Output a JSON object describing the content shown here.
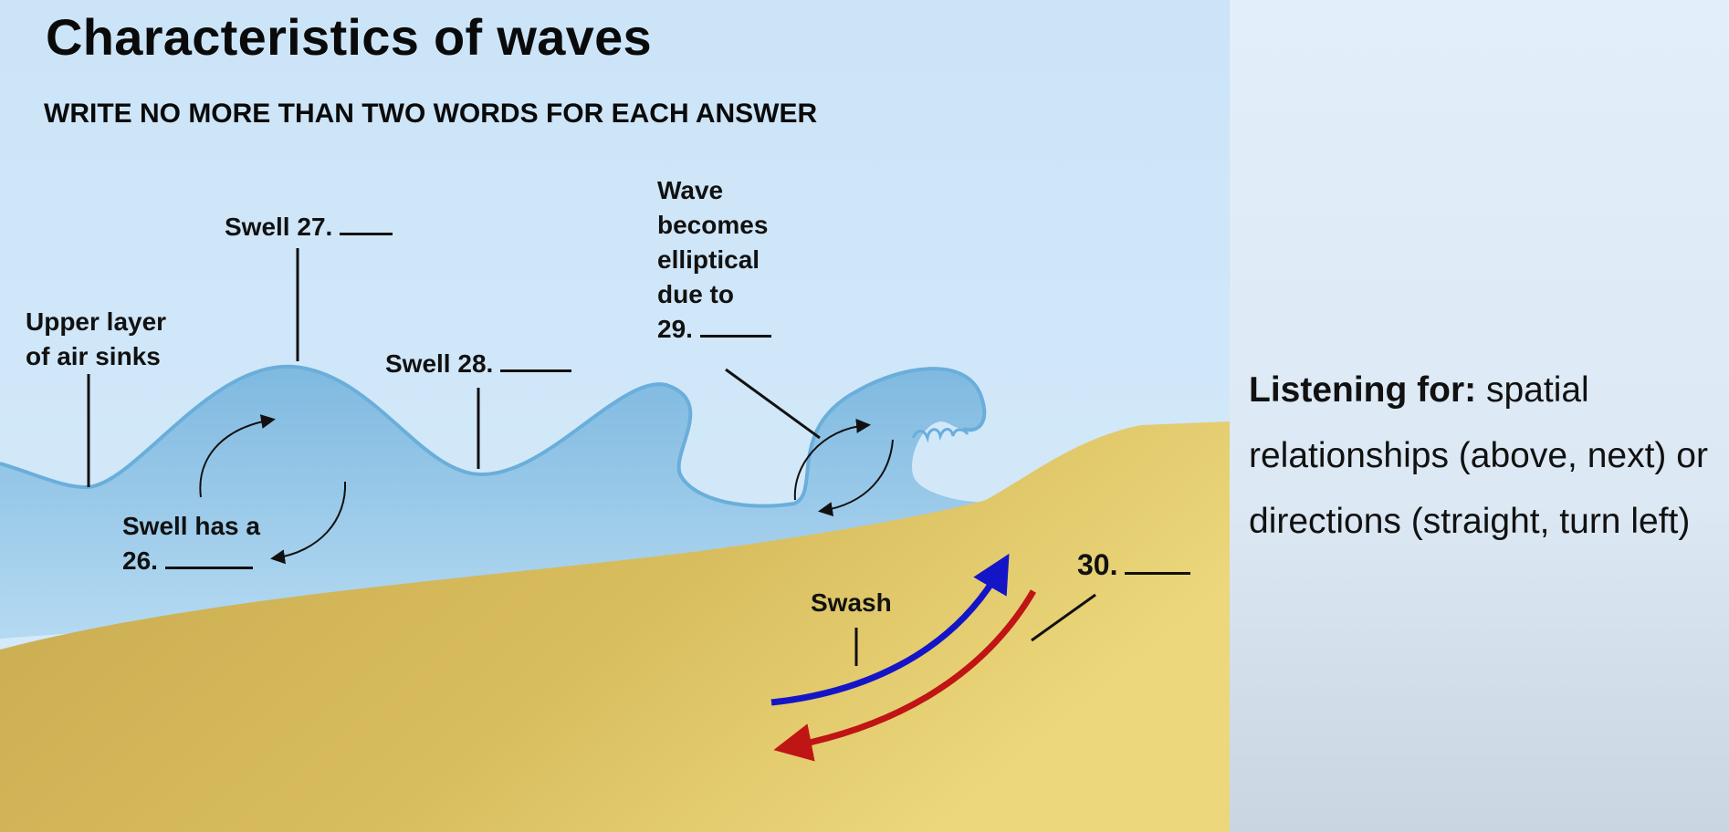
{
  "title": "Characteristics of waves",
  "instruction": "WRITE NO MORE THAN TWO WORDS FOR EACH ANSWER",
  "labels": {
    "upper_layer": [
      "Upper layer",
      "of air sinks"
    ],
    "swell_27": "Swell 27.",
    "swell_28": "Swell 28.",
    "wave_elliptical": [
      "Wave",
      "becomes",
      "elliptical",
      "due to",
      "29."
    ],
    "swell_26": [
      "Swell has a",
      "26."
    ],
    "swash": "Swash",
    "label_30": "30."
  },
  "side_note": {
    "heading": "Listening for:",
    "text": "spatial relationships (above, next) or directions (straight, turn left)"
  },
  "colors": {
    "sky": "#cfe6f8",
    "water": "#8ec4e6",
    "sand": "#d9bd63",
    "panel": "#dde9f5",
    "swash_arrow": "#1515c8",
    "backwash_arrow": "#c01515"
  }
}
